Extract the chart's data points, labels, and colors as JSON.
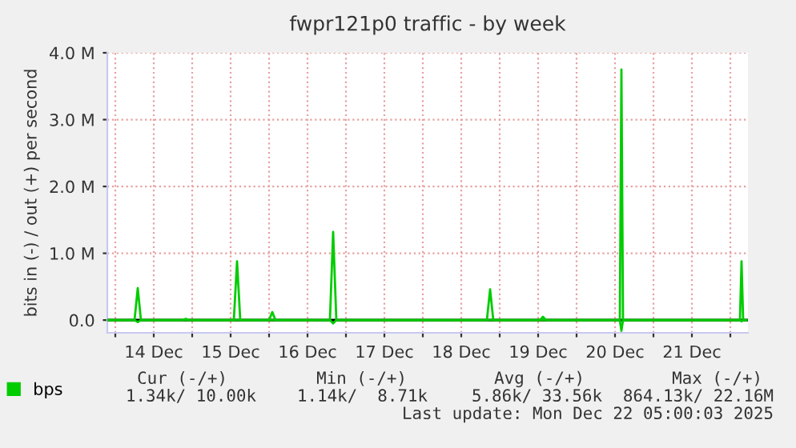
{
  "chart_data": {
    "type": "line",
    "title": "fwpr121p0 traffic - by week",
    "ylabel": "bits in (-) / out (+) per second",
    "series": [
      {
        "name": "bps",
        "color": "#00cc00",
        "x": [
          "2025-12-13T21:30",
          "2025-12-14T06:00",
          "2025-12-14T07:00",
          "2025-12-14T08:00",
          "2025-12-14T21:00",
          "2025-12-14T22:00",
          "2025-12-14T23:00",
          "2025-12-15T13:00",
          "2025-12-15T14:00",
          "2025-12-15T15:00",
          "2025-12-16T00:00",
          "2025-12-16T01:00",
          "2025-12-16T02:00",
          "2025-12-16T19:00",
          "2025-12-16T20:00",
          "2025-12-16T21:00",
          "2025-12-18T20:00",
          "2025-12-18T21:00",
          "2025-12-18T22:00",
          "2025-12-19T12:30",
          "2025-12-19T13:30",
          "2025-12-19T14:30",
          "2025-12-20T13:30",
          "2025-12-20T14:00",
          "2025-12-20T14:30",
          "2025-12-22T03:00",
          "2025-12-22T03:30",
          "2025-12-22T04:00",
          "2025-12-22T05:00"
        ],
        "values": [
          0,
          0,
          480000,
          0,
          0,
          20000,
          0,
          0,
          880000,
          0,
          0,
          120000,
          0,
          0,
          1320000,
          0,
          0,
          460000,
          0,
          0,
          50000,
          0,
          0,
          3750000,
          0,
          0,
          880000,
          0,
          0
        ]
      },
      {
        "color": "#00cc00",
        "x": [
          "2025-12-13T21:30",
          "2025-12-14T06:00",
          "2025-12-14T07:00",
          "2025-12-14T08:00",
          "2025-12-16T19:00",
          "2025-12-16T20:00",
          "2025-12-16T21:00",
          "2025-12-20T13:30",
          "2025-12-20T14:00",
          "2025-12-20T14:30",
          "2025-12-22T03:00",
          "2025-12-22T03:30",
          "2025-12-22T04:00",
          "2025-12-22T05:00"
        ],
        "values": [
          0,
          0,
          -30000,
          0,
          0,
          -50000,
          0,
          0,
          -160000,
          0,
          0,
          -20000,
          0,
          0
        ]
      }
    ],
    "xlim": [
      "2025-12-13T21:30",
      "2025-12-22T05:30"
    ],
    "xticks": [
      {
        "value": "2025-12-14T00:00",
        "label": null
      },
      {
        "value": "2025-12-14T12:00",
        "label": "14 Dec"
      },
      {
        "value": "2025-12-15T00:00",
        "label": null
      },
      {
        "value": "2025-12-15T12:00",
        "label": "15 Dec"
      },
      {
        "value": "2025-12-16T00:00",
        "label": null
      },
      {
        "value": "2025-12-16T12:00",
        "label": "16 Dec"
      },
      {
        "value": "2025-12-17T00:00",
        "label": null
      },
      {
        "value": "2025-12-17T12:00",
        "label": "17 Dec"
      },
      {
        "value": "2025-12-18T00:00",
        "label": null
      },
      {
        "value": "2025-12-18T12:00",
        "label": "18 Dec"
      },
      {
        "value": "2025-12-19T00:00",
        "label": null
      },
      {
        "value": "2025-12-19T12:00",
        "label": "19 Dec"
      },
      {
        "value": "2025-12-20T00:00",
        "label": null
      },
      {
        "value": "2025-12-20T12:00",
        "label": "20 Dec"
      },
      {
        "value": "2025-12-21T00:00",
        "label": null
      },
      {
        "value": "2025-12-21T12:00",
        "label": "21 Dec"
      },
      {
        "value": "2025-12-22T00:00",
        "label": null
      }
    ],
    "ylim": [
      -190000,
      4000000
    ],
    "yticks": [
      {
        "value": 0,
        "label": "0.0"
      },
      {
        "value": 1000000,
        "label": "1.0 M"
      },
      {
        "value": 2000000,
        "label": "2.0 M"
      },
      {
        "value": 3000000,
        "label": "3.0 M"
      },
      {
        "value": 4000000,
        "label": "4.0 M"
      }
    ],
    "ref_lines": [
      {
        "axis": "y",
        "value": 0,
        "color": "#000000"
      }
    ],
    "grid": true,
    "legend": "bottom left",
    "annotations": [
      "Cur (-/+)",
      "Min (-/+)",
      "Avg (-/+)",
      "Max (-/+)",
      "1.34k/ 10.00k",
      "1.14k/  8.71k",
      "5.86k/ 33.56k",
      "864.13k/ 22.16M",
      "Last update: Mon Dec 22 05:00:03 2025"
    ]
  }
}
